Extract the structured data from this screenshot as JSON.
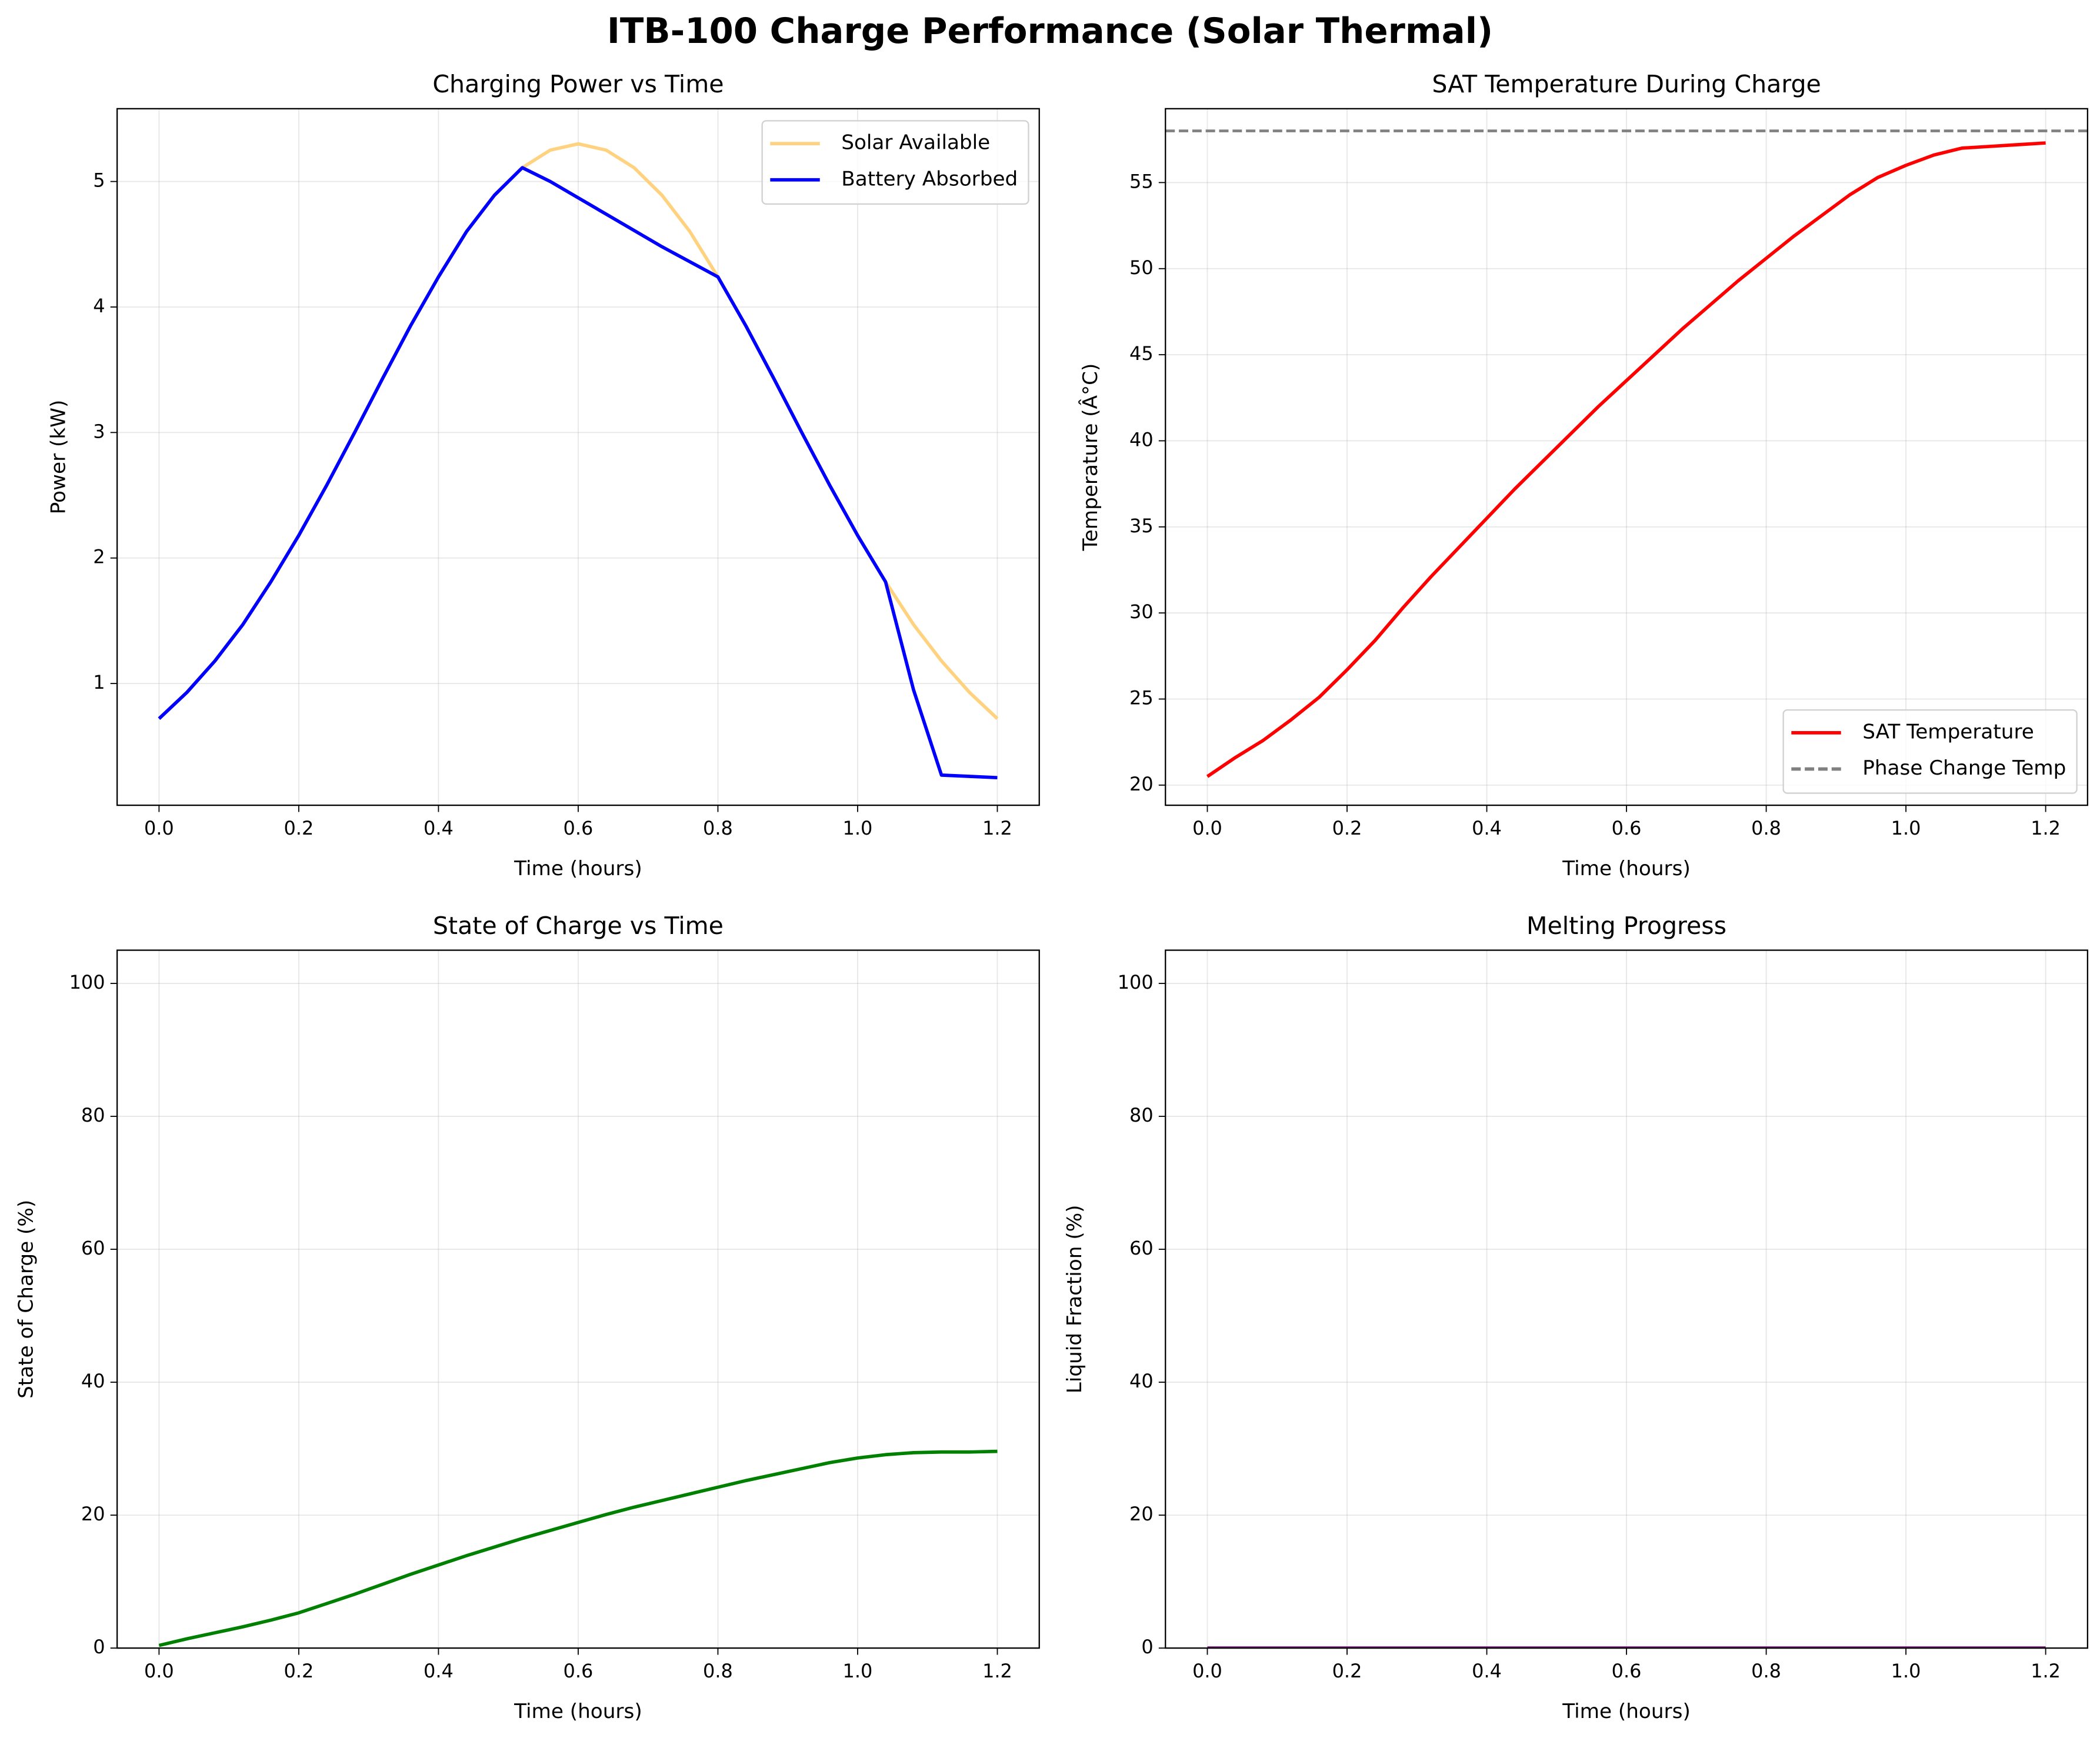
{
  "title": "ITB-100 Charge Performance (Solar Thermal)",
  "chart_data": [
    {
      "type": "line",
      "title": "Charging Power vs Time",
      "xlabel": "Time (hours)",
      "ylabel": "Power (kW)",
      "x": [
        0,
        0.04,
        0.08,
        0.12,
        0.16,
        0.2,
        0.24,
        0.28,
        0.32,
        0.36,
        0.4,
        0.44,
        0.48,
        0.52,
        0.56,
        0.6,
        0.64,
        0.68,
        0.72,
        0.76,
        0.8,
        0.84,
        0.88,
        0.92,
        0.96,
        1.0,
        1.04,
        1.08,
        1.12,
        1.16,
        1.2
      ],
      "series": [
        {
          "name": "Solar Available",
          "color": "#ffd280",
          "values": [
            0.72,
            0.93,
            1.18,
            1.47,
            1.81,
            2.18,
            2.58,
            3.0,
            3.43,
            3.85,
            4.24,
            4.6,
            4.89,
            5.11,
            5.25,
            5.3,
            5.25,
            5.11,
            4.89,
            4.6,
            4.24,
            3.85,
            3.43,
            3.0,
            2.58,
            2.18,
            1.81,
            1.47,
            1.18,
            0.93,
            0.72
          ]
        },
        {
          "name": "Battery Absorbed",
          "color": "#0000ff",
          "values": [
            0.72,
            0.93,
            1.18,
            1.47,
            1.81,
            2.18,
            2.58,
            3.0,
            3.43,
            3.85,
            4.24,
            4.6,
            4.89,
            5.11,
            5.0,
            4.87,
            4.74,
            4.61,
            4.48,
            4.36,
            4.24,
            3.85,
            3.43,
            3.0,
            2.58,
            2.18,
            1.81,
            0.95,
            0.27,
            0.26,
            0.25
          ]
        }
      ],
      "xlim": [
        -0.06,
        1.26
      ],
      "xticks": [
        {
          "value": 0,
          "label": "0.0"
        },
        0.2,
        0.4,
        0.6,
        0.8,
        {
          "value": 1,
          "label": "1.0"
        },
        1.2
      ],
      "ylim": [
        0.03,
        5.58
      ],
      "yticks": [
        1,
        2,
        3,
        4,
        5
      ],
      "grid": true,
      "legend": "upper-right"
    },
    {
      "type": "line",
      "title": "SAT Temperature During Charge",
      "xlabel": "Time (hours)",
      "ylabel": "Temperature (Â°C)",
      "x": [
        0,
        0.04,
        0.08,
        0.12,
        0.16,
        0.2,
        0.24,
        0.28,
        0.32,
        0.36,
        0.4,
        0.44,
        0.48,
        0.52,
        0.56,
        0.6,
        0.64,
        0.68,
        0.72,
        0.76,
        0.8,
        0.84,
        0.88,
        0.92,
        0.96,
        1.0,
        1.04,
        1.08,
        1.12,
        1.16,
        1.2
      ],
      "series": [
        {
          "name": "SAT Temperature",
          "color": "#ff0000",
          "values": [
            20.5,
            21.6,
            22.6,
            23.8,
            25.1,
            26.7,
            28.4,
            30.3,
            32.1,
            33.8,
            35.5,
            37.2,
            38.8,
            40.4,
            42.0,
            43.5,
            45.0,
            46.5,
            47.9,
            49.3,
            50.6,
            51.9,
            53.1,
            54.3,
            55.3,
            56.0,
            56.6,
            57.0,
            57.1,
            57.2,
            57.3
          ]
        }
      ],
      "reference_lines": [
        {
          "name": "Phase Change Temp",
          "value": 58,
          "color": "#808080",
          "style": "dashed"
        }
      ],
      "xlim": [
        -0.06,
        1.26
      ],
      "xticks": [
        {
          "value": 0,
          "label": "0.0"
        },
        0.2,
        0.4,
        0.6,
        0.8,
        {
          "value": 1,
          "label": "1.0"
        },
        1.2
      ],
      "ylim": [
        18.83,
        59.29
      ],
      "yticks": [
        20,
        25,
        30,
        35,
        40,
        45,
        50,
        55
      ],
      "grid": true,
      "legend": "lower-right"
    },
    {
      "type": "line",
      "title": "State of Charge vs Time",
      "xlabel": "Time (hours)",
      "ylabel": "State of Charge (%)",
      "x": [
        0,
        0.04,
        0.08,
        0.12,
        0.16,
        0.2,
        0.24,
        0.28,
        0.32,
        0.36,
        0.4,
        0.44,
        0.48,
        0.52,
        0.56,
        0.6,
        0.64,
        0.68,
        0.72,
        0.76,
        0.8,
        0.84,
        0.88,
        0.92,
        0.96,
        1.0,
        1.04,
        1.08,
        1.12,
        1.16,
        1.2
      ],
      "values": [
        0.4,
        1.4,
        2.3,
        3.2,
        4.2,
        5.3,
        6.7,
        8.1,
        9.6,
        11.1,
        12.5,
        13.9,
        15.2,
        16.5,
        17.7,
        18.9,
        20.1,
        21.2,
        22.2,
        23.2,
        24.2,
        25.2,
        26.1,
        27.0,
        27.9,
        28.6,
        29.1,
        29.4,
        29.5,
        29.5,
        29.6
      ],
      "color": "#008000",
      "xlim": [
        -0.06,
        1.26
      ],
      "xticks": [
        {
          "value": 0,
          "label": "0.0"
        },
        0.2,
        0.4,
        0.6,
        0.8,
        {
          "value": 1,
          "label": "1.0"
        },
        1.2
      ],
      "ylim": [
        0,
        105
      ],
      "yticks": [
        0,
        20,
        40,
        60,
        80,
        100
      ],
      "grid": true
    },
    {
      "type": "line",
      "title": "Melting Progress",
      "xlabel": "Time (hours)",
      "ylabel": "Liquid Fraction (%)",
      "x": [
        0,
        0.04,
        0.08,
        0.12,
        0.16,
        0.2,
        0.24,
        0.28,
        0.32,
        0.36,
        0.4,
        0.44,
        0.48,
        0.52,
        0.56,
        0.6,
        0.64,
        0.68,
        0.72,
        0.76,
        0.8,
        0.84,
        0.88,
        0.92,
        0.96,
        1.0,
        1.04,
        1.08,
        1.12,
        1.16,
        1.2
      ],
      "values": [
        0,
        0,
        0,
        0,
        0,
        0,
        0,
        0,
        0,
        0,
        0,
        0,
        0,
        0,
        0,
        0,
        0,
        0,
        0,
        0,
        0,
        0,
        0,
        0,
        0,
        0,
        0,
        0,
        0,
        0,
        0
      ],
      "color": "#800080",
      "xlim": [
        -0.06,
        1.26
      ],
      "xticks": [
        {
          "value": 0,
          "label": "0.0"
        },
        0.2,
        0.4,
        0.6,
        0.8,
        {
          "value": 1,
          "label": "1.0"
        },
        1.2
      ],
      "ylim": [
        0,
        105
      ],
      "yticks": [
        0,
        20,
        40,
        60,
        80,
        100
      ],
      "grid": true
    }
  ]
}
